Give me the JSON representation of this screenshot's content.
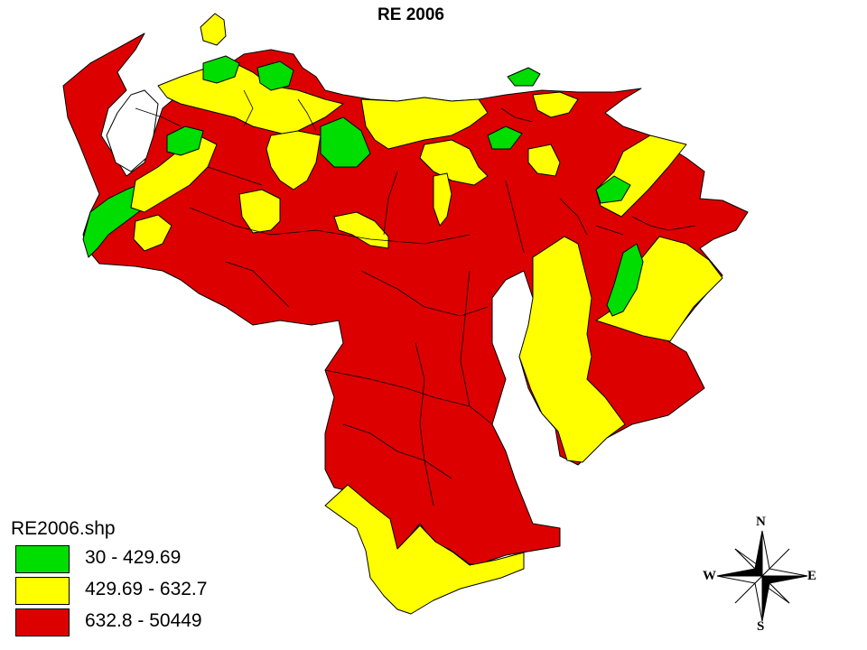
{
  "map": {
    "title": "RE 2006",
    "legend": {
      "title": "RE2006.shp",
      "classes": [
        {
          "label": "30 - 429.69",
          "color": "#00dd00"
        },
        {
          "label": "429.69 - 632.7",
          "color": "#ffff00"
        },
        {
          "label": "632.8 - 50449",
          "color": "#dd0000"
        }
      ]
    },
    "compass": {
      "north": "N",
      "south": "S",
      "east": "E",
      "west": "W"
    },
    "border_color": "#000000"
  }
}
